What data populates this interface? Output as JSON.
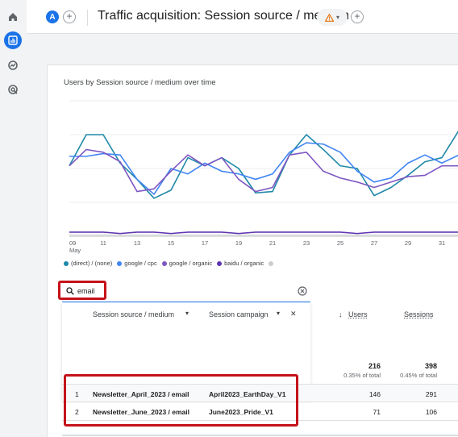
{
  "header": {
    "avatar_letter": "A",
    "add_symbol": "+",
    "title": "Traffic acquisition: Session source / medium",
    "warn_arrow": "▾",
    "add_comparison_symbol": "+"
  },
  "rail": {
    "icons": [
      "home-icon",
      "reports-icon",
      "explore-icon",
      "advertising-icon"
    ]
  },
  "chart_data": {
    "type": "line",
    "title": "Users by Session source / medium over time",
    "x_tick_labels": [
      "09\nMay",
      "11",
      "13",
      "15",
      "17",
      "19",
      "21",
      "23",
      "25",
      "27",
      "29",
      "31"
    ],
    "x": [
      9,
      10,
      11,
      12,
      13,
      14,
      15,
      16,
      17,
      18,
      19,
      20,
      21,
      22,
      23,
      24,
      25,
      26,
      27,
      28,
      29,
      30,
      31,
      32
    ],
    "series": [
      {
        "name": "(direct) / (none)",
        "color": "#1e88a8",
        "values": [
          52,
          75,
          75,
          54,
          42,
          28,
          34,
          58,
          52,
          58,
          50,
          32,
          33,
          60,
          75,
          64,
          52,
          50,
          30,
          36,
          45,
          55,
          58,
          78
        ]
      },
      {
        "name": "google / cpc",
        "color": "#4285f4",
        "values": [
          59,
          59,
          61,
          60,
          42,
          31,
          50,
          46,
          54,
          48,
          46,
          42,
          46,
          62,
          69,
          68,
          62,
          48,
          40,
          43,
          54,
          60,
          54,
          60
        ]
      },
      {
        "name": "google / organic",
        "color": "#7e57c2",
        "values": [
          52,
          64,
          62,
          55,
          33,
          35,
          48,
          60,
          52,
          58,
          42,
          33,
          36,
          60,
          62,
          48,
          43,
          40,
          36,
          40,
          44,
          45,
          52,
          52
        ]
      },
      {
        "name": "baidu / organic",
        "color": "#5e35b1",
        "values": [
          3,
          3,
          3,
          2,
          3,
          3,
          2,
          3,
          3,
          3,
          2,
          3,
          3,
          3,
          3,
          3,
          3,
          2,
          3,
          3,
          3,
          3,
          3,
          3
        ]
      },
      {
        "name": "",
        "color": "#cccccc",
        "values": [
          1,
          1,
          1,
          1,
          1,
          1,
          1,
          1,
          1,
          1,
          1,
          1,
          1,
          1,
          1,
          1,
          1,
          1,
          1,
          1,
          1,
          1,
          1,
          1
        ]
      }
    ],
    "ylim": [
      0,
      100
    ],
    "grid": true,
    "legend_position": "bottom"
  },
  "search": {
    "value": "email",
    "clear_label": "✕"
  },
  "table": {
    "dim1_header": "Session source / medium",
    "dim2_header": "Session campaign",
    "dim_close": "✕",
    "users_header": "Users",
    "sort_arrow": "↓",
    "sessions_header": "Sessions",
    "totals": {
      "users": "216",
      "users_pct": "0.35% of total",
      "sessions": "398",
      "sessions_pct": "0.45% of total"
    },
    "rows": [
      {
        "index": "1",
        "source_medium": "Newsletter_April_2023 / email",
        "campaign": "April2023_EarthDay_V1",
        "users": "146",
        "sessions": "291"
      },
      {
        "index": "2",
        "source_medium": "Newsletter_June_2023 / email",
        "campaign": "June2023_Pride_V1",
        "users": "71",
        "sessions": "106"
      }
    ]
  }
}
